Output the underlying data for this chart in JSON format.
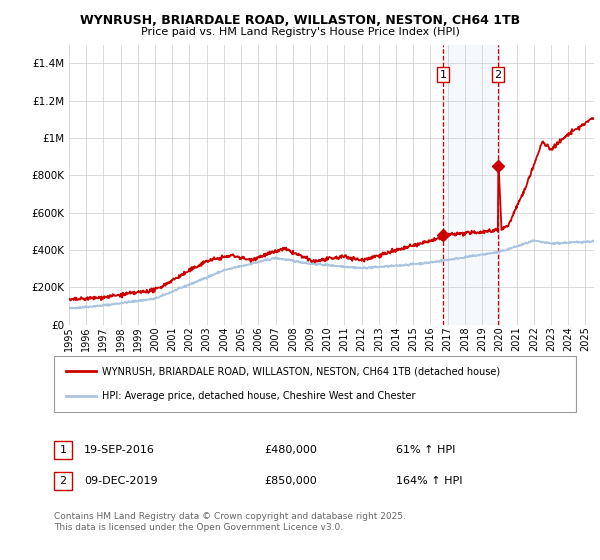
{
  "title": "WYNRUSH, BRIARDALE ROAD, WILLASTON, NESTON, CH64 1TB",
  "subtitle": "Price paid vs. HM Land Registry's House Price Index (HPI)",
  "ylim": [
    0,
    1500000
  ],
  "yticks": [
    0,
    200000,
    400000,
    600000,
    800000,
    1000000,
    1200000,
    1400000
  ],
  "ytick_labels": [
    "£0",
    "£200K",
    "£400K",
    "£600K",
    "£800K",
    "£1M",
    "£1.2M",
    "£1.4M"
  ],
  "xlim_start": 1995.0,
  "xlim_end": 2025.5,
  "xticks": [
    1995,
    1996,
    1997,
    1998,
    1999,
    2000,
    2001,
    2002,
    2003,
    2004,
    2005,
    2006,
    2007,
    2008,
    2009,
    2010,
    2011,
    2012,
    2013,
    2014,
    2015,
    2016,
    2017,
    2018,
    2019,
    2020,
    2021,
    2022,
    2023,
    2024,
    2025
  ],
  "hpi_color": "#aac4e0",
  "house_color": "#cc0000",
  "shade_color": "#dce9f5",
  "dashed_color": "#cc0000",
  "marker1_date": 2016.72,
  "marker1_price": 480000,
  "marker2_date": 2019.93,
  "marker2_price": 850000,
  "legend_house": "WYNRUSH, BRIARDALE ROAD, WILLASTON, NESTON, CH64 1TB (detached house)",
  "legend_hpi": "HPI: Average price, detached house, Cheshire West and Chester",
  "sale1_label": "1",
  "sale1_date": "19-SEP-2016",
  "sale1_price": "£480,000",
  "sale1_hpi": "61% ↑ HPI",
  "sale2_label": "2",
  "sale2_date": "09-DEC-2019",
  "sale2_price": "£850,000",
  "sale2_hpi": "164% ↑ HPI",
  "footnote": "Contains HM Land Registry data © Crown copyright and database right 2025.\nThis data is licensed under the Open Government Licence v3.0.",
  "background_color": "#ffffff",
  "grid_color": "#cccccc"
}
